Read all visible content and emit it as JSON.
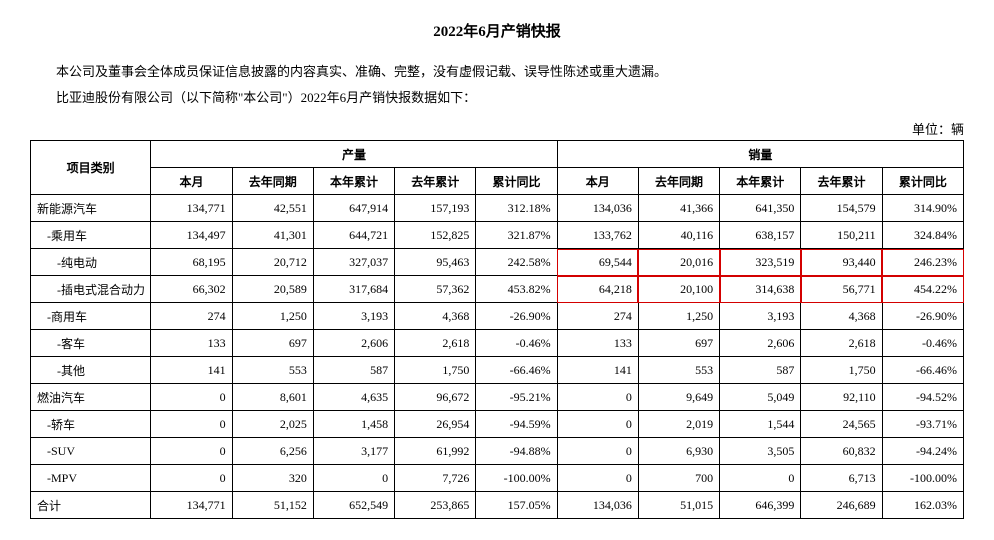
{
  "title": "2022年6月产销快报",
  "para1": "本公司及董事会全体成员保证信息披露的内容真实、准确、完整，没有虚假记载、误导性陈述或重大遗漏。",
  "para2": "比亚迪股份有限公司（以下简称\"本公司\"）2022年6月产销快报数据如下：",
  "unit": "单位：辆",
  "header": {
    "category": "项目类别",
    "production": "产量",
    "sales": "销量",
    "sub": [
      "本月",
      "去年同期",
      "本年累计",
      "去年累计",
      "累计同比"
    ]
  },
  "highlight": {
    "row_indices": [
      2,
      3
    ],
    "col_start": 6,
    "col_end": 10,
    "border_color": "#d30000"
  },
  "rows": [
    {
      "cat": "新能源汽车",
      "indent": 0,
      "p": [
        "134,771",
        "42,551",
        "647,914",
        "157,193",
        "312.18%"
      ],
      "s": [
        "134,036",
        "41,366",
        "641,350",
        "154,579",
        "314.90%"
      ]
    },
    {
      "cat": "-乘用车",
      "indent": 1,
      "p": [
        "134,497",
        "41,301",
        "644,721",
        "152,825",
        "321.87%"
      ],
      "s": [
        "133,762",
        "40,116",
        "638,157",
        "150,211",
        "324.84%"
      ]
    },
    {
      "cat": "-纯电动",
      "indent": 2,
      "p": [
        "68,195",
        "20,712",
        "327,037",
        "95,463",
        "242.58%"
      ],
      "s": [
        "69,544",
        "20,016",
        "323,519",
        "93,440",
        "246.23%"
      ]
    },
    {
      "cat": "-插电式混合动力",
      "indent": 2,
      "p": [
        "66,302",
        "20,589",
        "317,684",
        "57,362",
        "453.82%"
      ],
      "s": [
        "64,218",
        "20,100",
        "314,638",
        "56,771",
        "454.22%"
      ]
    },
    {
      "cat": "-商用车",
      "indent": 1,
      "p": [
        "274",
        "1,250",
        "3,193",
        "4,368",
        "-26.90%"
      ],
      "s": [
        "274",
        "1,250",
        "3,193",
        "4,368",
        "-26.90%"
      ]
    },
    {
      "cat": "-客车",
      "indent": 2,
      "p": [
        "133",
        "697",
        "2,606",
        "2,618",
        "-0.46%"
      ],
      "s": [
        "133",
        "697",
        "2,606",
        "2,618",
        "-0.46%"
      ]
    },
    {
      "cat": "-其他",
      "indent": 2,
      "p": [
        "141",
        "553",
        "587",
        "1,750",
        "-66.46%"
      ],
      "s": [
        "141",
        "553",
        "587",
        "1,750",
        "-66.46%"
      ]
    },
    {
      "cat": "燃油汽车",
      "indent": 0,
      "p": [
        "0",
        "8,601",
        "4,635",
        "96,672",
        "-95.21%"
      ],
      "s": [
        "0",
        "9,649",
        "5,049",
        "92,110",
        "-94.52%"
      ]
    },
    {
      "cat": "-轿车",
      "indent": 1,
      "p": [
        "0",
        "2,025",
        "1,458",
        "26,954",
        "-94.59%"
      ],
      "s": [
        "0",
        "2,019",
        "1,544",
        "24,565",
        "-93.71%"
      ]
    },
    {
      "cat": "-SUV",
      "indent": 1,
      "p": [
        "0",
        "6,256",
        "3,177",
        "61,992",
        "-94.88%"
      ],
      "s": [
        "0",
        "6,930",
        "3,505",
        "60,832",
        "-94.24%"
      ]
    },
    {
      "cat": "-MPV",
      "indent": 1,
      "p": [
        "0",
        "320",
        "0",
        "7,726",
        "-100.00%"
      ],
      "s": [
        "0",
        "700",
        "0",
        "6,713",
        "-100.00%"
      ]
    },
    {
      "cat": "合计",
      "indent": 0,
      "p": [
        "134,771",
        "51,152",
        "652,549",
        "253,865",
        "157.05%"
      ],
      "s": [
        "134,036",
        "51,015",
        "646,399",
        "246,689",
        "162.03%"
      ]
    }
  ]
}
